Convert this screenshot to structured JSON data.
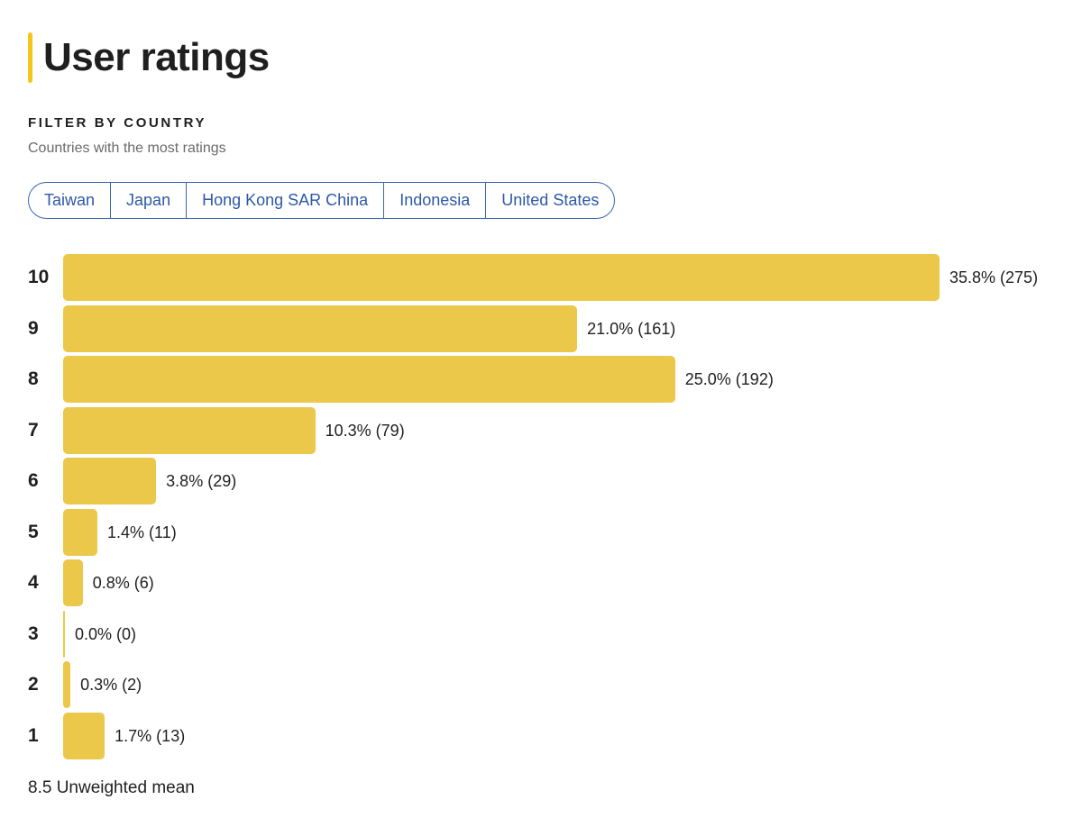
{
  "header": {
    "title": "User ratings"
  },
  "filter": {
    "label": "FILTER BY COUNTRY",
    "subtitle": "Countries with the most ratings",
    "countries": [
      "Taiwan",
      "Japan",
      "Hong Kong SAR China",
      "Indonesia",
      "United States"
    ]
  },
  "chart_data": {
    "type": "bar",
    "orientation": "horizontal",
    "categories": [
      "10",
      "9",
      "8",
      "7",
      "6",
      "5",
      "4",
      "3",
      "2",
      "1"
    ],
    "values": [
      35.8,
      21.0,
      25.0,
      10.3,
      3.8,
      1.4,
      0.8,
      0.0,
      0.3,
      1.7
    ],
    "counts": [
      275,
      161,
      192,
      79,
      29,
      11,
      6,
      0,
      2,
      13
    ],
    "data_labels": [
      "35.8% (275)",
      "21.0% (161)",
      "25.0% (192)",
      "10.3% (79)",
      "3.8% (29)",
      "1.4% (11)",
      "0.8% (6)",
      "0.0% (0)",
      "0.3% (2)",
      "1.7% (13)"
    ],
    "bar_color": "#ecc84a",
    "grid": false
  },
  "footer": {
    "mean": "8.5 Unweighted mean"
  }
}
